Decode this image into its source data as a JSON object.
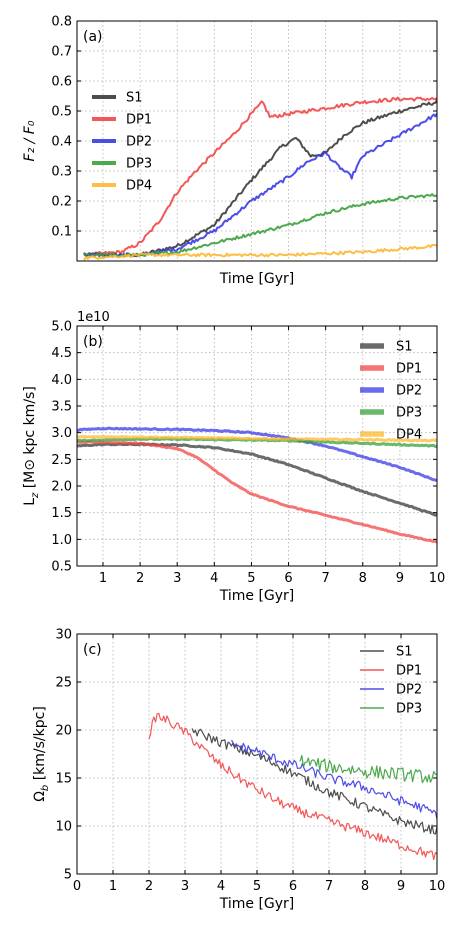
{
  "colors": {
    "S1": "#3a3a3a",
    "DP1": "#f24545",
    "DP2": "#3a3ae6",
    "DP3": "#3aa03a",
    "DP4": "#fcb830"
  },
  "chart_data": [
    {
      "type": "line",
      "panel_label": "(a)",
      "xlabel": "Time [Gyr]",
      "ylabel": "F₂ / F₀",
      "xlim": [
        0.3,
        10
      ],
      "ylim": [
        0,
        0.8
      ],
      "xticks": [],
      "yticks": [
        0.1,
        0.2,
        0.3,
        0.4,
        0.5,
        0.6,
        0.7,
        0.8
      ],
      "ytick_labels": [
        "0.1",
        "0.2",
        "0.3",
        "0.4",
        "0.5",
        "0.6",
        "0.7",
        "0.8"
      ],
      "grid": true,
      "legend": "left",
      "series": [
        {
          "name": "S1",
          "noise": 0.006,
          "x": [
            0.5,
            2.0,
            3.0,
            4.0,
            5.0,
            5.8,
            6.2,
            6.6,
            7.0,
            7.5,
            8.0,
            9.0,
            10.0
          ],
          "y": [
            0.02,
            0.02,
            0.05,
            0.12,
            0.27,
            0.38,
            0.41,
            0.35,
            0.36,
            0.42,
            0.46,
            0.5,
            0.53
          ]
        },
        {
          "name": "DP1",
          "noise": 0.006,
          "x": [
            0.5,
            1.5,
            2.0,
            2.5,
            3.0,
            3.5,
            4.0,
            4.5,
            5.0,
            5.3,
            5.5,
            6.0,
            7.0,
            8.0,
            9.0,
            10.0
          ],
          "y": [
            0.02,
            0.03,
            0.06,
            0.13,
            0.23,
            0.3,
            0.36,
            0.42,
            0.49,
            0.53,
            0.48,
            0.49,
            0.51,
            0.53,
            0.54,
            0.54
          ]
        },
        {
          "name": "DP2",
          "noise": 0.006,
          "x": [
            0.5,
            2.0,
            3.0,
            4.0,
            5.0,
            6.0,
            6.5,
            7.0,
            7.3,
            7.7,
            8.0,
            9.0,
            10.0
          ],
          "y": [
            0.02,
            0.02,
            0.04,
            0.1,
            0.2,
            0.28,
            0.33,
            0.36,
            0.32,
            0.28,
            0.35,
            0.42,
            0.49
          ]
        },
        {
          "name": "DP3",
          "noise": 0.005,
          "x": [
            0.5,
            2.0,
            3.0,
            4.0,
            5.0,
            6.0,
            7.0,
            8.0,
            9.0,
            10.0
          ],
          "y": [
            0.02,
            0.02,
            0.03,
            0.06,
            0.09,
            0.12,
            0.16,
            0.19,
            0.21,
            0.22
          ]
        },
        {
          "name": "DP4",
          "noise": 0.005,
          "x": [
            0.5,
            2.0,
            4.0,
            6.0,
            8.0,
            9.0,
            10.0
          ],
          "y": [
            0.01,
            0.02,
            0.02,
            0.02,
            0.03,
            0.04,
            0.05
          ]
        }
      ]
    },
    {
      "type": "line",
      "panel_label": "(b)",
      "xlabel": "Time [Gyr]",
      "ylabel": "L_z [M⊙ kpc km/s]",
      "exponent_label": "1e10",
      "xlim": [
        0.3,
        10
      ],
      "ylim": [
        0.5,
        5.0
      ],
      "xticks": [
        1,
        2,
        3,
        4,
        5,
        6,
        7,
        8,
        9,
        10
      ],
      "xtick_labels": [
        "1",
        "2",
        "3",
        "4",
        "5",
        "6",
        "7",
        "8",
        "9",
        "10"
      ],
      "yticks": [
        0.5,
        1.0,
        1.5,
        2.0,
        2.5,
        3.0,
        3.5,
        4.0,
        4.5,
        5.0
      ],
      "ytick_labels": [
        "0.5",
        "1.0",
        "1.5",
        "2.0",
        "2.5",
        "3.0",
        "3.5",
        "4.0",
        "4.5",
        "5.0"
      ],
      "grid": true,
      "legend": "top-right",
      "series": [
        {
          "name": "S1",
          "noise": 0.01,
          "x": [
            0.3,
            1.0,
            2.0,
            3.0,
            4.0,
            5.0,
            6.0,
            7.0,
            8.0,
            9.0,
            10.0
          ],
          "y": [
            2.75,
            2.78,
            2.78,
            2.77,
            2.72,
            2.6,
            2.4,
            2.15,
            1.9,
            1.68,
            1.45
          ]
        },
        {
          "name": "DP1",
          "noise": 0.01,
          "x": [
            0.3,
            1.0,
            2.0,
            3.0,
            3.5,
            4.0,
            4.5,
            5.0,
            6.0,
            7.0,
            8.0,
            9.0,
            10.0
          ],
          "y": [
            2.82,
            2.82,
            2.8,
            2.7,
            2.55,
            2.3,
            2.05,
            1.85,
            1.62,
            1.45,
            1.28,
            1.1,
            0.95
          ]
        },
        {
          "name": "DP2",
          "noise": 0.01,
          "x": [
            0.3,
            1.0,
            2.0,
            3.0,
            4.0,
            5.0,
            6.0,
            7.0,
            8.0,
            9.0,
            10.0
          ],
          "y": [
            3.05,
            3.08,
            3.07,
            3.06,
            3.04,
            3.0,
            2.9,
            2.75,
            2.55,
            2.35,
            2.1
          ]
        },
        {
          "name": "DP3",
          "noise": 0.01,
          "x": [
            0.3,
            2.0,
            4.0,
            6.0,
            8.0,
            10.0
          ],
          "y": [
            2.85,
            2.88,
            2.87,
            2.85,
            2.8,
            2.75
          ]
        },
        {
          "name": "DP4",
          "noise": 0.01,
          "x": [
            0.3,
            2.0,
            4.0,
            6.0,
            8.0,
            10.0
          ],
          "y": [
            2.92,
            2.92,
            2.9,
            2.88,
            2.87,
            2.85
          ]
        }
      ]
    },
    {
      "type": "line",
      "panel_label": "(c)",
      "xlabel": "Time [Gyr]",
      "ylabel": "Ω_b [km/s/kpc]",
      "xlim": [
        0,
        10
      ],
      "ylim": [
        5,
        30
      ],
      "xticks": [
        0,
        1,
        2,
        3,
        4,
        5,
        6,
        7,
        8,
        9,
        10
      ],
      "xtick_labels": [
        "0",
        "1",
        "2",
        "3",
        "4",
        "5",
        "6",
        "7",
        "8",
        "9",
        "10"
      ],
      "yticks": [
        5,
        10,
        15,
        20,
        25,
        30
      ],
      "ytick_labels": [
        "5",
        "10",
        "15",
        "20",
        "25",
        "30"
      ],
      "grid": true,
      "legend": "top-right",
      "series": [
        {
          "name": "S1",
          "noise": 0.5,
          "x": [
            3.2,
            3.5,
            4.0,
            4.5,
            5.0,
            5.5,
            6.0,
            6.5,
            7.0,
            7.5,
            8.0,
            8.5,
            9.0,
            9.5,
            10.0
          ],
          "y": [
            20.0,
            19.5,
            18.7,
            18.0,
            17.3,
            16.5,
            15.5,
            14.5,
            13.5,
            12.8,
            12.0,
            11.2,
            10.5,
            10.0,
            9.5
          ]
        },
        {
          "name": "DP1",
          "noise": 0.5,
          "x": [
            2.0,
            2.2,
            2.5,
            3.0,
            3.5,
            4.0,
            4.5,
            5.0,
            5.5,
            6.0,
            7.0,
            8.0,
            9.0,
            10.0
          ],
          "y": [
            19.5,
            21.5,
            21.0,
            19.8,
            18.0,
            16.3,
            15.0,
            13.8,
            12.7,
            11.8,
            10.5,
            9.3,
            8.0,
            6.8
          ]
        },
        {
          "name": "DP2",
          "noise": 0.5,
          "x": [
            4.3,
            5.0,
            5.5,
            6.0,
            6.5,
            7.0,
            7.5,
            8.0,
            8.5,
            9.0,
            9.5,
            10.0
          ],
          "y": [
            18.5,
            17.8,
            17.0,
            16.4,
            15.7,
            15.0,
            14.5,
            14.0,
            13.3,
            12.6,
            12.0,
            11.2
          ]
        },
        {
          "name": "DP3",
          "noise": 0.7,
          "x": [
            6.2,
            7.0,
            8.0,
            9.0,
            10.0
          ],
          "y": [
            16.8,
            16.2,
            15.7,
            15.4,
            15.0
          ]
        }
      ]
    }
  ]
}
